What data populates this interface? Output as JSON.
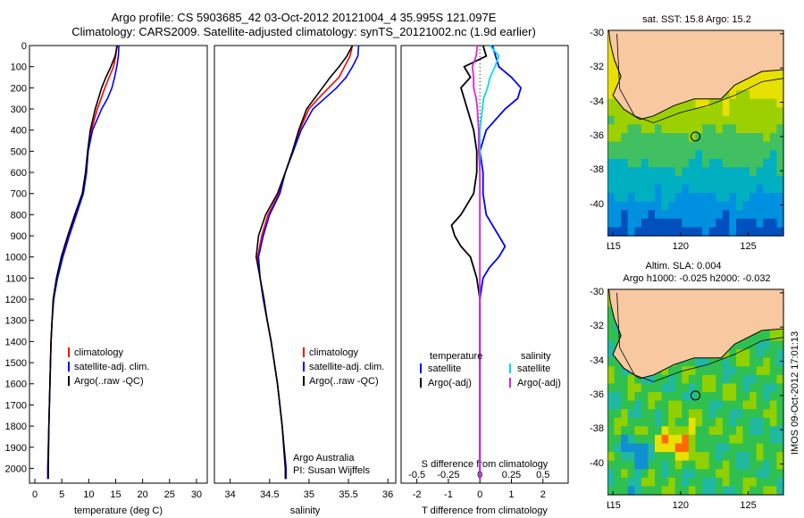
{
  "header": {
    "title_line1": "Argo profile: CS 5903685_42 03-Oct-2012 20121004_4 35.995S 121.097E",
    "title_line2": "Climatology: CARS2009. Satellite-adjusted climatology: synTS_20121002.nc (1.9d earlier)"
  },
  "maps": {
    "sst_title": "sat. SST: 15.8 Argo: 15.2",
    "sla_title_line1": "Altim. SLA: 0.004",
    "sla_title_line2": "Argo h1000: -0.025 h2000: -0.032",
    "lat_ticks": [
      "-30",
      "-32",
      "-34",
      "-36",
      "-38",
      "-40"
    ],
    "lon_ticks": [
      "115",
      "120",
      "125"
    ],
    "lat_values": [
      -30,
      -32,
      -34,
      -36,
      -38,
      -40
    ],
    "lon_values": [
      115,
      120,
      125
    ],
    "lat_range": [
      -41.8,
      -29.8
    ],
    "lon_range": [
      114.6,
      127.6
    ],
    "profile_lat": -36.0,
    "profile_lon": 121.1
  },
  "side_label": "IMOS 09-Oct-2012 17:01:13",
  "colors": {
    "climatology": "#ff0000",
    "satellite": "#0000ff",
    "argo": "#000000",
    "cyan": "#00e0e0",
    "magenta": "#e020e0",
    "land": "#f8c8a0"
  },
  "chart_data": [
    {
      "type": "line",
      "title": "",
      "xlabel": "temperature (deg C)",
      "ylabel": "",
      "xlim": [
        -1,
        32
      ],
      "ylim": [
        2070,
        0
      ],
      "xticks": [
        0,
        5,
        10,
        15,
        20,
        25,
        30
      ],
      "yticks": [
        0,
        100,
        200,
        300,
        400,
        500,
        600,
        700,
        800,
        900,
        1000,
        1100,
        1200,
        1300,
        1400,
        1500,
        1600,
        1700,
        1800,
        1900,
        2000
      ],
      "depth": [
        0,
        50,
        100,
        150,
        200,
        250,
        300,
        400,
        500,
        600,
        700,
        800,
        900,
        1000,
        1100,
        1200,
        1300,
        1400,
        1600,
        1800,
        2000,
        2050
      ],
      "series": [
        {
          "name": "climatology",
          "values": [
            15.2,
            15.0,
            14.6,
            13.8,
            13.0,
            12.3,
            11.6,
            10.5,
            9.9,
            9.5,
            8.9,
            7.6,
            6.3,
            5.1,
            4.1,
            3.5,
            3.2,
            3.0,
            2.8,
            2.6,
            2.4,
            2.4
          ]
        },
        {
          "name": "satellite-adj. clim.",
          "values": [
            15.6,
            15.5,
            15.2,
            14.8,
            14.3,
            13.5,
            12.4,
            10.7,
            9.9,
            9.6,
            9.0,
            7.7,
            6.4,
            5.2,
            4.2,
            3.5,
            3.2,
            3.0,
            2.8,
            2.6,
            2.4,
            2.4
          ]
        },
        {
          "name": "Argo(..raw -QC)",
          "values": [
            15.3,
            14.9,
            14.1,
            13.2,
            12.4,
            11.8,
            11.2,
            10.3,
            9.8,
            9.4,
            8.8,
            7.4,
            6.1,
            4.9,
            4.0,
            3.4,
            3.2,
            3.0,
            2.8,
            2.6,
            2.5,
            2.5
          ]
        }
      ],
      "legend": [
        "climatology",
        "satellite-adj. clim.",
        "Argo(..raw -QC)"
      ],
      "legend_position": "center"
    },
    {
      "type": "line",
      "title": "",
      "xlabel": "salinity",
      "ylabel": "",
      "xlim": [
        33.8,
        36.1
      ],
      "ylim": [
        2070,
        0
      ],
      "xticks": [
        34,
        34.5,
        35,
        35.5,
        36
      ],
      "xtick_labels": [
        "34",
        "34.5",
        "35",
        "35.5",
        "36"
      ],
      "depth": [
        0,
        50,
        100,
        150,
        200,
        250,
        300,
        400,
        500,
        600,
        700,
        800,
        900,
        1000,
        1100,
        1200,
        1300,
        1400,
        1600,
        1800,
        2000,
        2050
      ],
      "series": [
        {
          "name": "climatology",
          "values": [
            35.55,
            35.52,
            35.45,
            35.38,
            35.25,
            35.12,
            35.0,
            34.88,
            34.8,
            34.7,
            34.62,
            34.48,
            34.4,
            34.35,
            34.38,
            34.42,
            34.47,
            34.52,
            34.6,
            34.66,
            34.7,
            34.7
          ]
        },
        {
          "name": "satellite-adj. clim.",
          "values": [
            35.63,
            35.62,
            35.55,
            35.47,
            35.35,
            35.2,
            35.05,
            34.9,
            34.8,
            34.7,
            34.63,
            34.5,
            34.42,
            34.36,
            34.38,
            34.42,
            34.47,
            34.52,
            34.6,
            34.66,
            34.71,
            34.71
          ]
        },
        {
          "name": "Argo(..raw -QC)",
          "values": [
            35.55,
            35.48,
            35.38,
            35.27,
            35.17,
            35.07,
            34.97,
            34.87,
            34.79,
            34.7,
            34.6,
            34.45,
            34.36,
            34.33,
            34.38,
            34.43,
            34.47,
            34.52,
            34.6,
            34.66,
            34.7,
            34.7
          ]
        }
      ],
      "legend": [
        "climatology",
        "satellite-adj. clim.",
        "Argo(..raw -QC)"
      ],
      "legend_position": "center",
      "annotation_line1": "Argo Australia",
      "annotation_line2": "PI: Susan Wijffels"
    },
    {
      "type": "line",
      "title": "",
      "xlabel": "T difference from climatology",
      "x2label": "S difference from climatology",
      "ylabel": "",
      "xlim": [
        -2.5,
        2.8
      ],
      "x2lim": [
        -0.625,
        0.7
      ],
      "ylim": [
        2070,
        0
      ],
      "xticks": [
        -2,
        -1,
        0,
        1,
        2
      ],
      "x2ticks": [
        -0.5,
        -0.25,
        0,
        0.25,
        0.5
      ],
      "x2tick_labels": [
        "-0.5",
        "-0.25",
        "0",
        "0.25",
        "0.5"
      ],
      "depth": [
        0,
        50,
        100,
        150,
        200,
        250,
        300,
        400,
        500,
        600,
        700,
        800,
        850,
        900,
        950,
        1000,
        1050,
        1100,
        1200,
        1400,
        1600,
        1800,
        2000,
        2050
      ],
      "series": [
        {
          "name": "temperature satellite",
          "axis": "T",
          "values": [
            0.4,
            0.5,
            0.6,
            1.0,
            1.3,
            1.2,
            0.8,
            0.2,
            0.0,
            0.1,
            0.1,
            0.2,
            0.4,
            0.6,
            0.8,
            0.6,
            0.3,
            0.1,
            0.0,
            0.0,
            0.0,
            0.0,
            0.0,
            0.0
          ]
        },
        {
          "name": "temperature Argo(-adj)",
          "axis": "T",
          "values": [
            0.1,
            0.2,
            -0.5,
            -0.3,
            -0.6,
            -0.5,
            -0.4,
            -0.2,
            -0.1,
            -0.1,
            -0.2,
            -0.6,
            -0.9,
            -0.8,
            -0.6,
            -0.3,
            -0.2,
            -0.1,
            0.0,
            0.0,
            0.0,
            0.0,
            0.0,
            0.0
          ]
        },
        {
          "name": "salinity satellite",
          "axis": "S",
          "values": [
            0.08,
            0.15,
            0.12,
            0.08,
            0.06,
            0.03,
            0.02,
            0.0,
            0.0,
            0.0,
            0.0,
            0.0,
            0.0,
            0.0,
            0.0,
            0.0,
            0.0,
            0.0,
            0.0,
            0.0,
            0.0,
            0.0,
            0.0,
            0.0
          ]
        },
        {
          "name": "salinity Argo(-adj)",
          "axis": "S",
          "values": [
            -0.02,
            -0.03,
            -0.06,
            -0.05,
            -0.05,
            -0.03,
            -0.02,
            -0.01,
            -0.01,
            0.0,
            0.0,
            0.0,
            0.0,
            0.0,
            0.0,
            0.0,
            0.0,
            0.0,
            0.0,
            0.0,
            0.0,
            0.0,
            0.0,
            0.0
          ]
        }
      ],
      "legend_t_title": "temperature",
      "legend_s_title": "salinity",
      "legend_t": [
        "satellite",
        "Argo(-adj)"
      ],
      "legend_s": [
        "satellite",
        "Argo(-adj)"
      ],
      "legend_position": "center"
    }
  ]
}
